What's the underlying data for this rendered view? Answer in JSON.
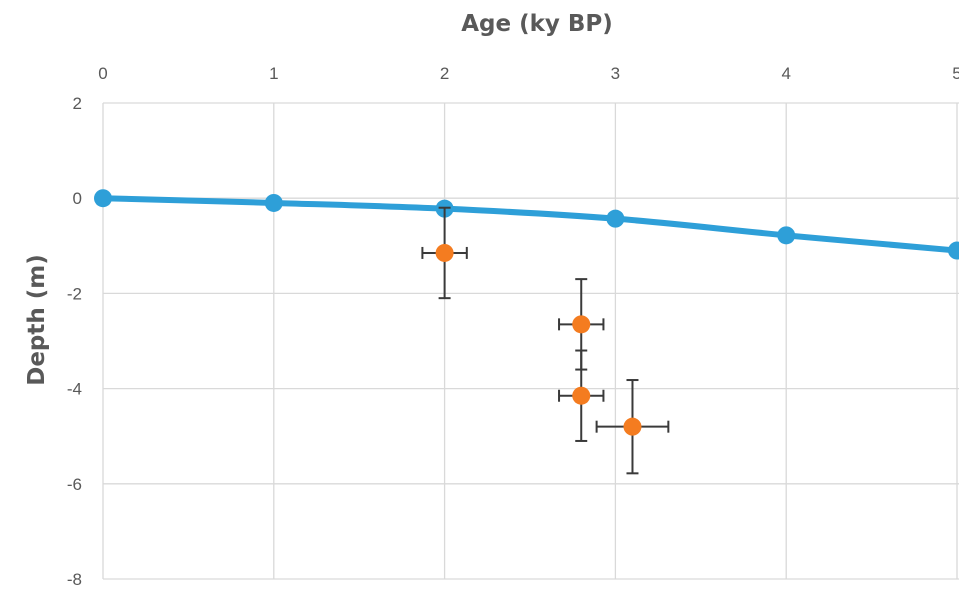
{
  "chart_data": {
    "type": "scatter",
    "xlabel": "Age (ky BP)",
    "ylabel": "Depth (m)",
    "xlim": [
      0,
      5
    ],
    "ylim": [
      -8,
      2
    ],
    "x_ticks": [
      "0",
      "1",
      "2",
      "3",
      "4",
      "5"
    ],
    "y_ticks": [
      "2",
      "0",
      "-2",
      "-4",
      "-6",
      "-8"
    ],
    "x_axis_position": "top",
    "grid": true,
    "series": [
      {
        "kind": "line",
        "color": "#2e9fd8",
        "points": [
          {
            "x": 0,
            "y": 0
          },
          {
            "x": 1,
            "y": -0.1
          },
          {
            "x": 2,
            "y": -0.22
          },
          {
            "x": 3,
            "y": -0.43
          },
          {
            "x": 4,
            "y": -0.78
          },
          {
            "x": 5,
            "y": -1.1
          }
        ]
      },
      {
        "kind": "scatter",
        "color": "#f47c20",
        "error_color": "#3a3a3a",
        "points": [
          {
            "x": 2.0,
            "y": -1.15,
            "x_err": 0.13,
            "y_err": 0.95
          },
          {
            "x": 2.8,
            "y": -2.65,
            "x_err": 0.13,
            "y_err": 0.95
          },
          {
            "x": 2.8,
            "y": -4.15,
            "x_err": 0.13,
            "y_err": 0.95
          },
          {
            "x": 3.1,
            "y": -4.8,
            "x_err": 0.21,
            "y_err": 0.98
          }
        ]
      }
    ]
  }
}
